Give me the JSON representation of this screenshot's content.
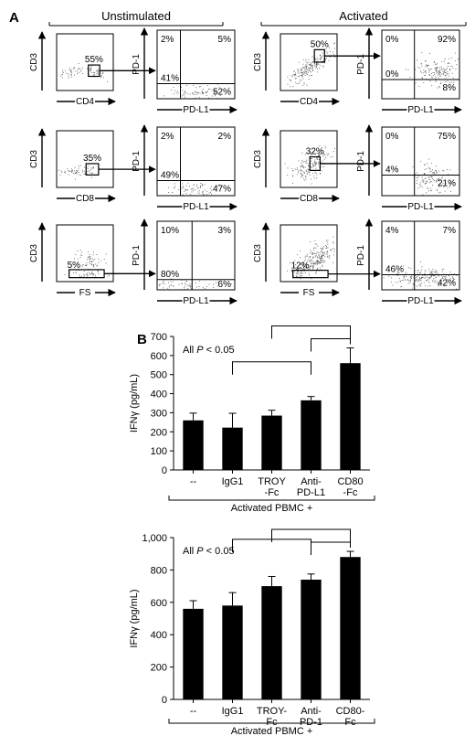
{
  "panel_a": {
    "label": "A",
    "headers": [
      "Unstimulated",
      "Activated"
    ],
    "columns": [
      {
        "header": "Unstimulated",
        "rows": [
          {
            "gate": {
              "xlabel": "CD4",
              "ylabel": "CD3",
              "percent": "55%"
            },
            "quad": {
              "xlabel": "PD-L1",
              "ylabel": "PD-1",
              "ul": "2%",
              "ur": "5%",
              "ll": "41%",
              "lr": "52%"
            }
          },
          {
            "gate": {
              "xlabel": "CD8",
              "ylabel": "CD3",
              "percent": "35%"
            },
            "quad": {
              "xlabel": "PD-L1",
              "ylabel": "PD-1",
              "ul": "2%",
              "ur": "2%",
              "ll": "49%",
              "lr": "47%"
            }
          },
          {
            "gate": {
              "xlabel": "FS",
              "ylabel": "CD3",
              "percent": "5%"
            },
            "quad": {
              "xlabel": "PD-L1",
              "ylabel": "PD-1",
              "ul": "10%",
              "ur": "3%",
              "ll": "80%",
              "lr": "6%"
            }
          }
        ]
      },
      {
        "header": "Activated",
        "rows": [
          {
            "gate": {
              "xlabel": "CD4",
              "ylabel": "CD3",
              "percent": "50%"
            },
            "quad": {
              "xlabel": "PD-L1",
              "ylabel": "PD-1",
              "ul": "0%",
              "ur": "92%",
              "ll": "0%",
              "lr": "8%"
            }
          },
          {
            "gate": {
              "xlabel": "CD8",
              "ylabel": "CD3",
              "percent": "32%"
            },
            "quad": {
              "xlabel": "PD-L1",
              "ylabel": "PD-1",
              "ul": "0%",
              "ur": "75%",
              "ll": "4%",
              "lr": "21%"
            }
          },
          {
            "gate": {
              "xlabel": "FS",
              "ylabel": "CD3",
              "percent": "12%"
            },
            "quad": {
              "xlabel": "PD-L1",
              "ylabel": "PD-1",
              "ul": "4%",
              "ur": "7%",
              "ll": "46%",
              "lr": "42%"
            }
          }
        ]
      }
    ]
  },
  "panel_b": {
    "label": "B"
  },
  "chart_data": [
    {
      "type": "bar",
      "title": "",
      "annotation": "All P < 0.05",
      "categories": [
        [
          "--"
        ],
        [
          "IgG1"
        ],
        [
          "TROY",
          "-Fc"
        ],
        [
          "Anti-",
          "PD-L1"
        ],
        [
          "CD80",
          "-Fc"
        ]
      ],
      "values": [
        260,
        222,
        285,
        365,
        560
      ],
      "errors": [
        38,
        75,
        28,
        20,
        80
      ],
      "ylabel": "IFNγ (pg/mL)",
      "ylim": [
        0,
        700
      ],
      "yticks": [
        "0",
        "100",
        "200",
        "300",
        "400",
        "500",
        "600",
        "700"
      ],
      "group_label": "Activated PBMC +",
      "comparisons": [
        [
          1,
          3
        ],
        [
          2,
          4
        ],
        [
          3,
          4
        ]
      ],
      "bar_color": "#000000"
    },
    {
      "type": "bar",
      "title": "",
      "annotation": "All P < 0.05",
      "categories": [
        [
          "--"
        ],
        [
          "IgG1"
        ],
        [
          "TROY-",
          "Fc"
        ],
        [
          "Anti-",
          "PD-1"
        ],
        [
          "CD80-",
          "Fc"
        ]
      ],
      "values": [
        560,
        580,
        700,
        740,
        880
      ],
      "errors": [
        50,
        80,
        60,
        35,
        35
      ],
      "ylabel": "IFNγ (pg/mL)",
      "ylim": [
        0,
        1000
      ],
      "yticks": [
        "0",
        "200",
        "400",
        "600",
        "800",
        "1,000"
      ],
      "group_label": "Activated PBMC +",
      "comparisons": [
        [
          1,
          3
        ],
        [
          2,
          4
        ],
        [
          3,
          4
        ]
      ],
      "bar_color": "#000000"
    }
  ]
}
